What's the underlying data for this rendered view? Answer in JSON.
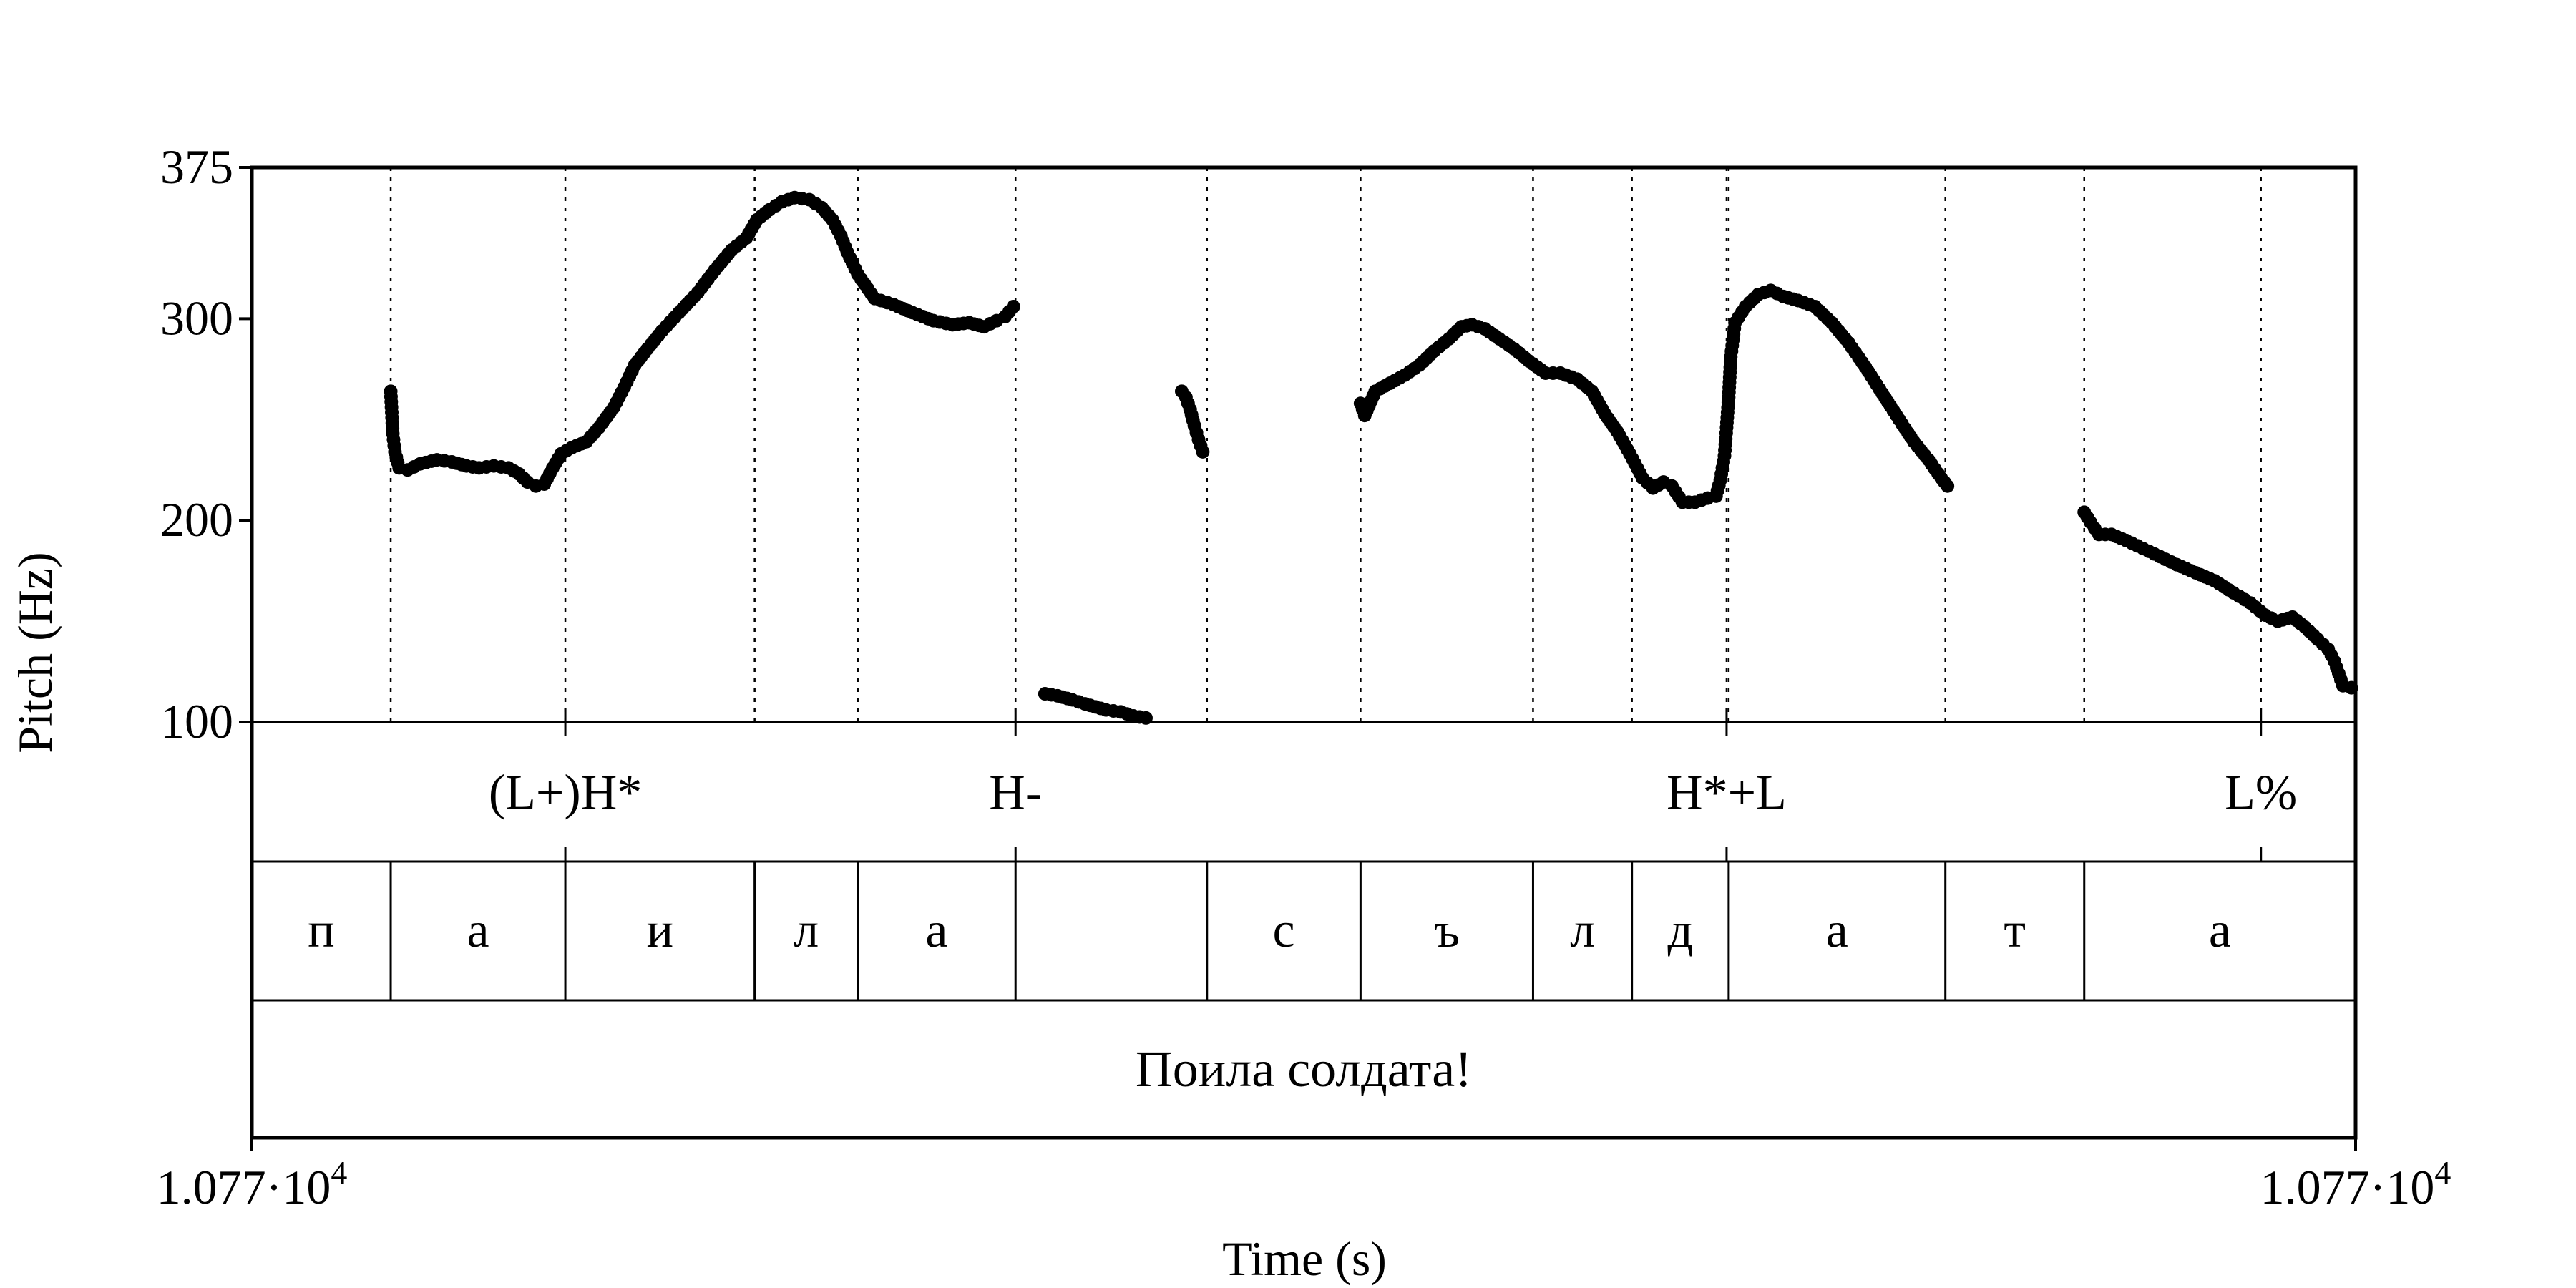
{
  "chart_data": {
    "type": "scatter",
    "title": "",
    "xlabel": "Time (s)",
    "ylabel": "Pitch (Hz)",
    "ylim": [
      100,
      375
    ],
    "y_ticks": [
      "100",
      "200",
      "300",
      "375"
    ],
    "x_tick_labels": {
      "left": {
        "mantissa": "1.077·10",
        "exp": "4"
      },
      "right": {
        "mantissa": "1.077·10",
        "exp": "4"
      }
    },
    "tones_tier": [
      {
        "label": "(L+)H*",
        "position": 0.149
      },
      {
        "label": "H-",
        "position": 0.363
      },
      {
        "label": "H*+L",
        "position": 0.701
      },
      {
        "label": "L%",
        "position": 0.955
      }
    ],
    "segments_tier": [
      {
        "label": "п",
        "start": 0.0,
        "end": 0.066
      },
      {
        "label": "а",
        "start": 0.066,
        "end": 0.149
      },
      {
        "label": "и",
        "start": 0.149,
        "end": 0.239
      },
      {
        "label": "л",
        "start": 0.239,
        "end": 0.288
      },
      {
        "label": "а",
        "start": 0.288,
        "end": 0.363
      },
      {
        "label": "",
        "start": 0.363,
        "end": 0.454
      },
      {
        "label": "с",
        "start": 0.454,
        "end": 0.527
      },
      {
        "label": "ъ",
        "start": 0.527,
        "end": 0.609
      },
      {
        "label": "л",
        "start": 0.609,
        "end": 0.656
      },
      {
        "label": "д",
        "start": 0.656,
        "end": 0.702
      },
      {
        "label": "а",
        "start": 0.702,
        "end": 0.805
      },
      {
        "label": "т",
        "start": 0.805,
        "end": 0.871
      },
      {
        "label": "а",
        "start": 0.871,
        "end": 1.0
      }
    ],
    "utterance_tier": [
      {
        "label": "Поила солдата!",
        "start": 0.0,
        "end": 1.0
      }
    ],
    "pitch_contours": [
      [
        [
          0.066,
          264
        ],
        [
          0.067,
          243
        ],
        [
          0.068,
          234
        ],
        [
          0.07,
          226
        ],
        [
          0.074,
          225
        ],
        [
          0.08,
          228
        ],
        [
          0.088,
          230
        ],
        [
          0.095,
          229
        ],
        [
          0.102,
          227
        ],
        [
          0.108,
          226
        ],
        [
          0.115,
          227
        ],
        [
          0.122,
          226
        ],
        [
          0.127,
          223
        ],
        [
          0.131,
          219
        ],
        [
          0.135,
          217
        ],
        [
          0.139,
          218
        ],
        [
          0.143,
          226
        ],
        [
          0.147,
          233
        ],
        [
          0.152,
          236
        ],
        [
          0.159,
          239
        ],
        [
          0.165,
          246
        ],
        [
          0.172,
          256
        ],
        [
          0.177,
          266
        ],
        [
          0.182,
          277
        ],
        [
          0.188,
          285
        ],
        [
          0.195,
          294
        ],
        [
          0.203,
          303
        ],
        [
          0.212,
          313
        ],
        [
          0.22,
          324
        ],
        [
          0.228,
          334
        ],
        [
          0.235,
          340
        ],
        [
          0.24,
          349
        ],
        [
          0.246,
          354
        ],
        [
          0.252,
          358
        ],
        [
          0.258,
          360
        ],
        [
          0.265,
          359
        ],
        [
          0.271,
          355
        ],
        [
          0.276,
          349
        ],
        [
          0.28,
          341
        ],
        [
          0.283,
          333
        ],
        [
          0.288,
          322
        ],
        [
          0.296,
          310
        ],
        [
          0.305,
          307
        ],
        [
          0.314,
          303
        ],
        [
          0.324,
          299
        ],
        [
          0.333,
          297
        ],
        [
          0.341,
          298
        ],
        [
          0.348,
          296
        ],
        [
          0.354,
          299
        ],
        [
          0.358,
          301
        ],
        [
          0.362,
          306
        ]
      ],
      [
        [
          0.377,
          114
        ],
        [
          0.383,
          113
        ],
        [
          0.39,
          111
        ],
        [
          0.396,
          109
        ],
        [
          0.406,
          106
        ],
        [
          0.413,
          105
        ],
        [
          0.419,
          103
        ],
        [
          0.425,
          102
        ]
      ],
      [
        [
          0.442,
          264
        ],
        [
          0.444,
          261
        ],
        [
          0.446,
          255
        ],
        [
          0.448,
          247
        ],
        [
          0.45,
          240
        ],
        [
          0.452,
          234
        ]
      ],
      [
        [
          0.527,
          258
        ],
        [
          0.529,
          252
        ],
        [
          0.534,
          264
        ],
        [
          0.541,
          268
        ],
        [
          0.548,
          272
        ],
        [
          0.555,
          277
        ],
        [
          0.562,
          284
        ],
        [
          0.569,
          290
        ],
        [
          0.575,
          296
        ],
        [
          0.58,
          297
        ],
        [
          0.586,
          295
        ],
        [
          0.593,
          290
        ],
        [
          0.6,
          285
        ],
        [
          0.607,
          279
        ],
        [
          0.615,
          273
        ],
        [
          0.622,
          273
        ],
        [
          0.63,
          270
        ],
        [
          0.637,
          264
        ],
        [
          0.643,
          253
        ],
        [
          0.649,
          244
        ],
        [
          0.655,
          233
        ],
        [
          0.661,
          221
        ],
        [
          0.666,
          216
        ],
        [
          0.671,
          219
        ],
        [
          0.675,
          217
        ],
        [
          0.68,
          209
        ],
        [
          0.686,
          209
        ],
        [
          0.692,
          211
        ],
        [
          0.696,
          212
        ],
        [
          0.698,
          220
        ],
        [
          0.7,
          232
        ],
        [
          0.701,
          246
        ],
        [
          0.702,
          261
        ],
        [
          0.703,
          281
        ],
        [
          0.705,
          298
        ],
        [
          0.71,
          306
        ],
        [
          0.716,
          312
        ],
        [
          0.722,
          314
        ],
        [
          0.728,
          311
        ],
        [
          0.735,
          309
        ],
        [
          0.743,
          306
        ],
        [
          0.751,
          298
        ],
        [
          0.759,
          288
        ],
        [
          0.767,
          276
        ],
        [
          0.775,
          263
        ],
        [
          0.783,
          250
        ],
        [
          0.79,
          239
        ],
        [
          0.797,
          230
        ],
        [
          0.803,
          221
        ],
        [
          0.806,
          217
        ]
      ],
      [
        [
          0.871,
          204
        ],
        [
          0.874,
          199
        ],
        [
          0.878,
          193
        ],
        [
          0.884,
          193
        ],
        [
          0.891,
          190
        ],
        [
          0.899,
          186
        ],
        [
          0.907,
          182
        ],
        [
          0.915,
          178
        ],
        [
          0.924,
          174
        ],
        [
          0.933,
          170
        ],
        [
          0.942,
          164
        ],
        [
          0.95,
          159
        ],
        [
          0.957,
          153
        ],
        [
          0.963,
          150
        ],
        [
          0.97,
          152
        ],
        [
          0.976,
          147
        ],
        [
          0.982,
          141
        ],
        [
          0.987,
          136
        ],
        [
          0.99,
          130
        ],
        [
          0.992,
          124
        ],
        [
          0.994,
          118
        ],
        [
          0.998,
          117
        ]
      ]
    ]
  }
}
